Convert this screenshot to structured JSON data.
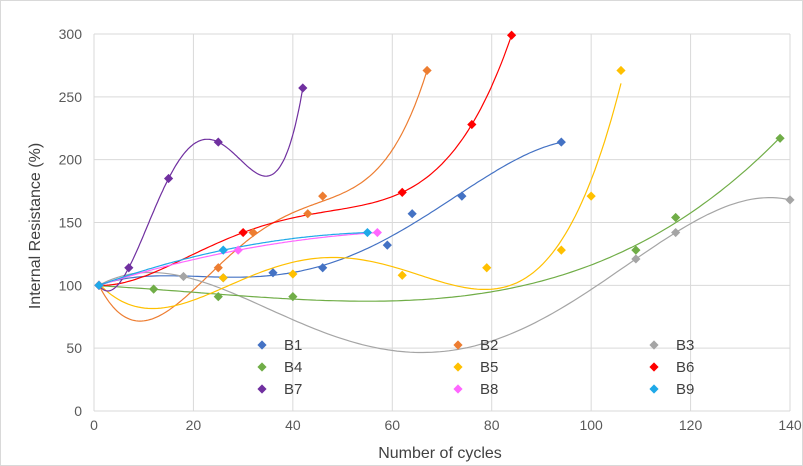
{
  "chart_data": {
    "type": "scatter",
    "xlabel": "Number of cycles",
    "ylabel": "Internal Resistance (%)",
    "xlim": [
      0,
      140
    ],
    "ylim": [
      0,
      300
    ],
    "x_ticks": [
      "0",
      "20",
      "40",
      "60",
      "80",
      "100",
      "120",
      "140"
    ],
    "y_ticks": [
      "0",
      "50",
      "100",
      "150",
      "200",
      "250",
      "300"
    ],
    "grid": "vertical and horizontal major gridlines",
    "legend_position": "inside bottom, 3 columns",
    "trendlines": "polynomial fit per series",
    "series": [
      {
        "name": "B1",
        "color": "#4472c4",
        "points": [
          [
            1,
            100
          ],
          [
            26,
            106
          ],
          [
            36,
            110
          ],
          [
            46,
            114
          ],
          [
            59,
            132
          ],
          [
            64,
            157
          ],
          [
            74,
            171
          ],
          [
            94,
            214
          ]
        ]
      },
      {
        "name": "B2",
        "color": "#ed7d31",
        "points": [
          [
            1,
            100
          ],
          [
            25,
            114
          ],
          [
            32,
            142
          ],
          [
            43,
            157
          ],
          [
            46,
            171
          ],
          [
            67,
            271
          ]
        ]
      },
      {
        "name": "B3",
        "color": "#a5a5a5",
        "points": [
          [
            1,
            100
          ],
          [
            18,
            107
          ],
          [
            109,
            121
          ],
          [
            117,
            142
          ],
          [
            140,
            168
          ]
        ]
      },
      {
        "name": "B4",
        "color": "#70ad47",
        "points": [
          [
            1,
            100
          ],
          [
            12,
            97
          ],
          [
            25,
            91
          ],
          [
            40,
            91
          ],
          [
            109,
            128
          ],
          [
            117,
            154
          ],
          [
            138,
            217
          ]
        ]
      },
      {
        "name": "B5",
        "color": "#ffc000",
        "points": [
          [
            1,
            100
          ],
          [
            26,
            106
          ],
          [
            40,
            109
          ],
          [
            62,
            108
          ],
          [
            79,
            114
          ],
          [
            94,
            128
          ],
          [
            100,
            171
          ],
          [
            106,
            271
          ]
        ]
      },
      {
        "name": "B6",
        "color": "#ff0000",
        "points": [
          [
            1,
            100
          ],
          [
            30,
            142
          ],
          [
            62,
            174
          ],
          [
            76,
            228
          ],
          [
            84,
            299
          ]
        ]
      },
      {
        "name": "B7",
        "color": "#7030a0",
        "points": [
          [
            1,
            100
          ],
          [
            7,
            114
          ],
          [
            15,
            185
          ],
          [
            25,
            214
          ],
          [
            42,
            257
          ]
        ]
      },
      {
        "name": "B8",
        "color": "#ff66ff",
        "points": [
          [
            1,
            100
          ],
          [
            29,
            128
          ],
          [
            57,
            142
          ]
        ]
      },
      {
        "name": "B9",
        "color": "#1fa9e8",
        "points": [
          [
            1,
            100
          ],
          [
            26,
            128
          ],
          [
            55,
            142
          ]
        ]
      }
    ]
  }
}
